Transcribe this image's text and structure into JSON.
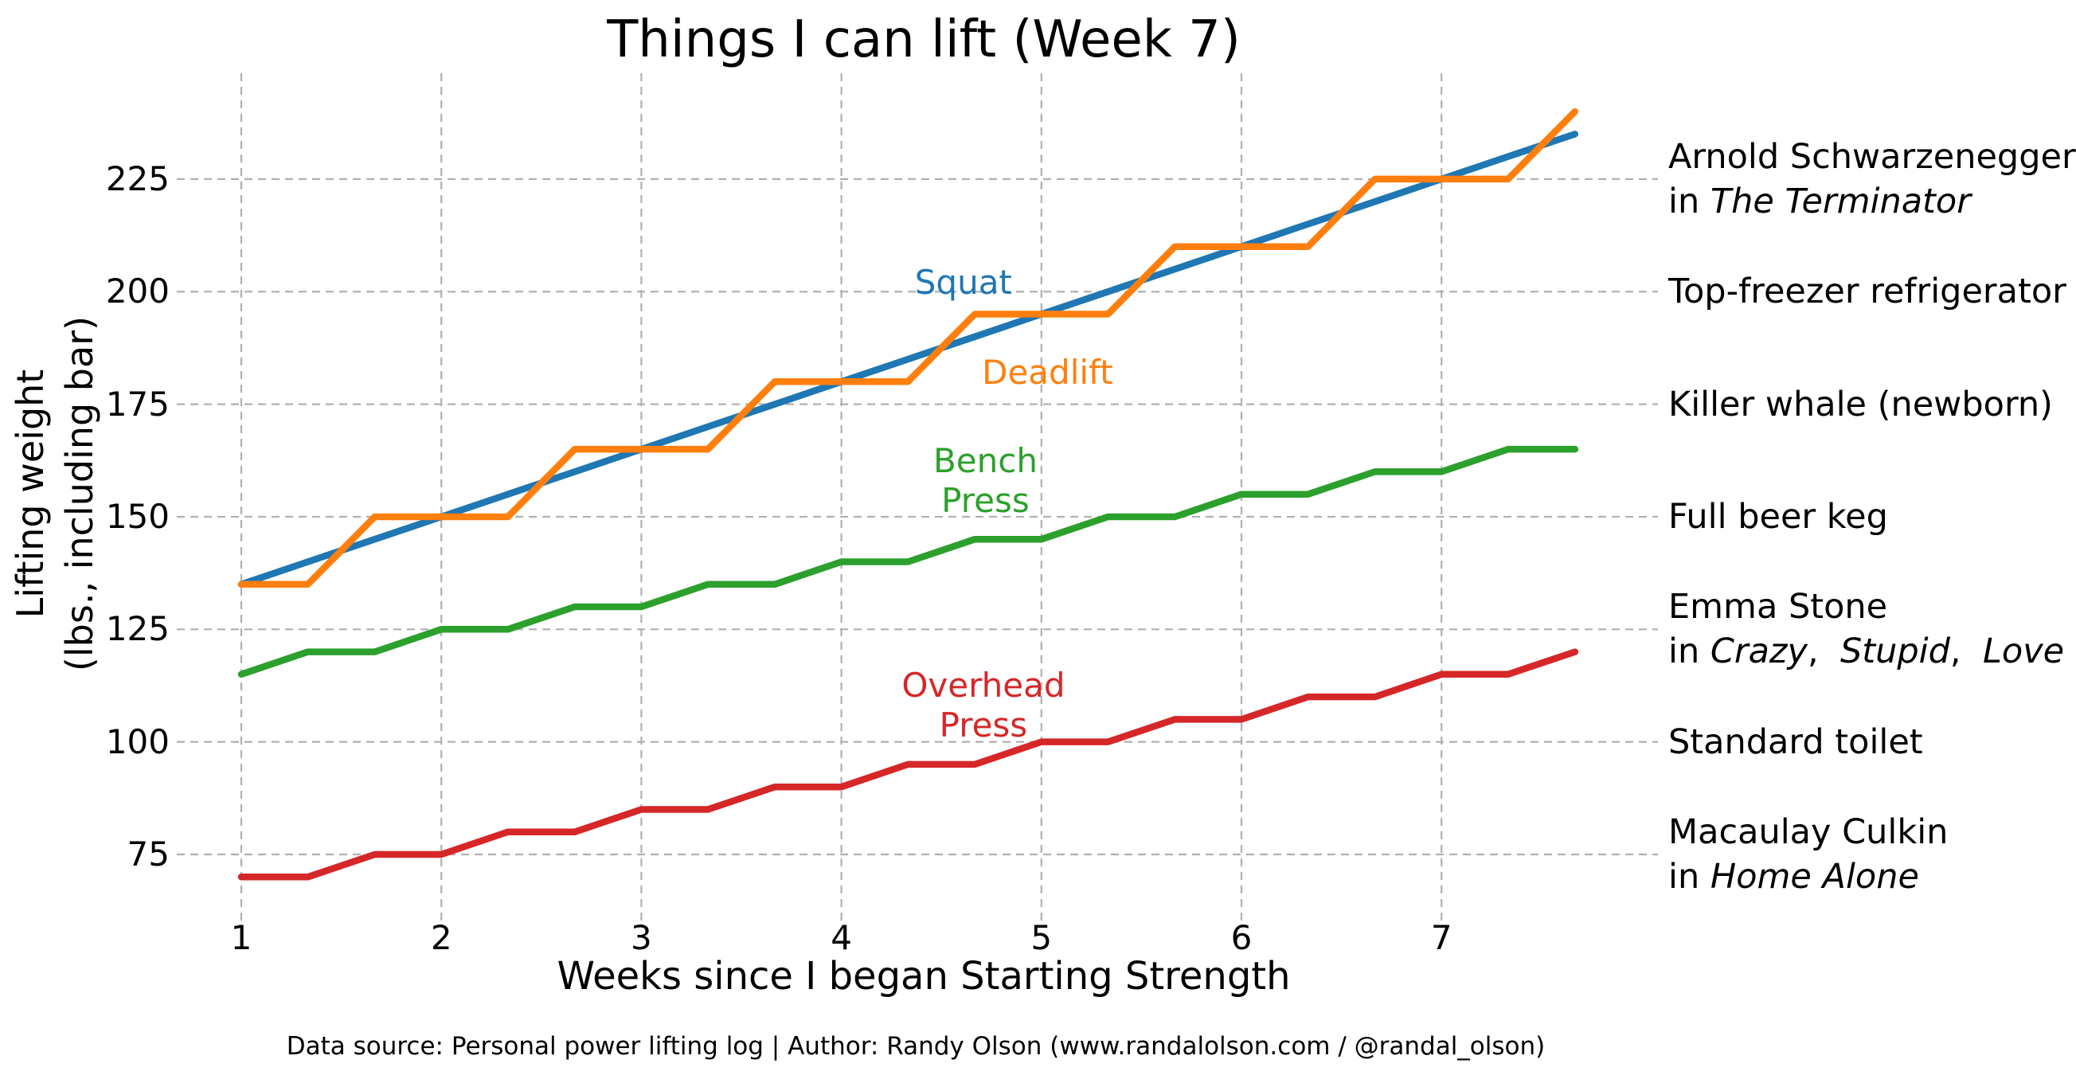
{
  "title": "Things I can lift (Week 7)",
  "xlabel": "Weeks since I began Starting Strength",
  "ylabel_lines": [
    "Lifting weight",
    "(lbs., including bar)"
  ],
  "footer": "Data source: Personal power lifting log | Author: Randy Olson (www.randalolson.com / @randal_olson)",
  "colors": {
    "squat": "#1f77b4",
    "deadlift": "#ff7f0e",
    "bench_press": "#2ca02c",
    "overhead_press": "#d62728",
    "grid": "#b0b0b0",
    "text": "#000000",
    "background": "#ffffff"
  },
  "chart_data": {
    "type": "line",
    "title": "Things I can lift (Week 7)",
    "xlabel": "Weeks since I began Starting Strength",
    "ylabel": "Lifting weight (lbs., including bar)",
    "grid": true,
    "legend_position": "inline-labels",
    "x_axis": {
      "ticks": [
        1,
        2,
        3,
        4,
        5,
        6,
        7
      ],
      "range": [
        0.667,
        8.04
      ]
    },
    "y_axis": {
      "ticks": [
        225,
        200,
        175,
        150,
        125,
        100,
        75
      ],
      "range": [
        61.5,
        248.5
      ]
    },
    "x": [
      1,
      1.333,
      1.667,
      2,
      2.333,
      2.667,
      3,
      3.333,
      3.667,
      4,
      4.333,
      4.667,
      5,
      5.333,
      5.667,
      6,
      6.333,
      6.667,
      7,
      7.333,
      7.667
    ],
    "series": [
      {
        "name": "Squat",
        "color": "#1f77b4",
        "values": [
          135,
          140,
          145,
          150,
          155,
          160,
          165,
          170,
          175,
          180,
          185,
          190,
          195,
          200,
          205,
          210,
          215,
          220,
          225,
          230,
          235
        ],
        "label": {
          "lines": [
            "Squat"
          ],
          "x": 4.61,
          "y": 202
        }
      },
      {
        "name": "Deadlift",
        "color": "#ff7f0e",
        "values": [
          135,
          135,
          150,
          150,
          150,
          165,
          165,
          165,
          180,
          180,
          180,
          195,
          195,
          195,
          210,
          210,
          210,
          225,
          225,
          225,
          240
        ],
        "label": {
          "lines": [
            "Deadlift"
          ],
          "x": 5.03,
          "y": 182
        }
      },
      {
        "name": "Bench Press",
        "color": "#2ca02c",
        "values": [
          115,
          120,
          120,
          125,
          125,
          130,
          130,
          135,
          135,
          140,
          140,
          145,
          145,
          150,
          150,
          155,
          155,
          160,
          160,
          165,
          165
        ],
        "label": {
          "lines": [
            "Bench",
            "Press"
          ],
          "x": 4.72,
          "y": 158
        }
      },
      {
        "name": "Overhead Press",
        "color": "#d62728",
        "values": [
          70,
          70,
          75,
          75,
          80,
          80,
          85,
          85,
          90,
          90,
          95,
          95,
          100,
          100,
          105,
          105,
          110,
          110,
          115,
          115,
          120
        ],
        "label": {
          "lines": [
            "Overhead",
            "Press"
          ],
          "x": 4.71,
          "y": 108
        }
      }
    ],
    "annotations": [
      {
        "y": 225,
        "lines": [
          [
            {
              "text": "Arnold Schwarzenegger",
              "italic": false
            }
          ],
          [
            {
              "text": "in ",
              "italic": false
            },
            {
              "text": "The Terminator",
              "italic": true
            }
          ]
        ]
      },
      {
        "y": 200,
        "lines": [
          [
            {
              "text": "Top-freezer refrigerator",
              "italic": false
            }
          ]
        ]
      },
      {
        "y": 175,
        "lines": [
          [
            {
              "text": "Killer whale (newborn)",
              "italic": false
            }
          ]
        ]
      },
      {
        "y": 150,
        "lines": [
          [
            {
              "text": "Full beer keg",
              "italic": false
            }
          ]
        ]
      },
      {
        "y": 125,
        "lines": [
          [
            {
              "text": "Emma Stone",
              "italic": false
            }
          ],
          [
            {
              "text": "in ",
              "italic": false
            },
            {
              "text": "Crazy",
              "italic": true
            },
            {
              "text": ",  ",
              "italic": false
            },
            {
              "text": "Stupid",
              "italic": true
            },
            {
              "text": ",  ",
              "italic": false
            },
            {
              "text": "Love",
              "italic": true
            }
          ]
        ]
      },
      {
        "y": 100,
        "lines": [
          [
            {
              "text": "Standard toilet",
              "italic": false
            }
          ]
        ]
      },
      {
        "y": 75,
        "lines": [
          [
            {
              "text": "Macaulay Culkin",
              "italic": false
            }
          ],
          [
            {
              "text": "in ",
              "italic": false
            },
            {
              "text": "Home Alone",
              "italic": true
            }
          ]
        ]
      }
    ]
  }
}
